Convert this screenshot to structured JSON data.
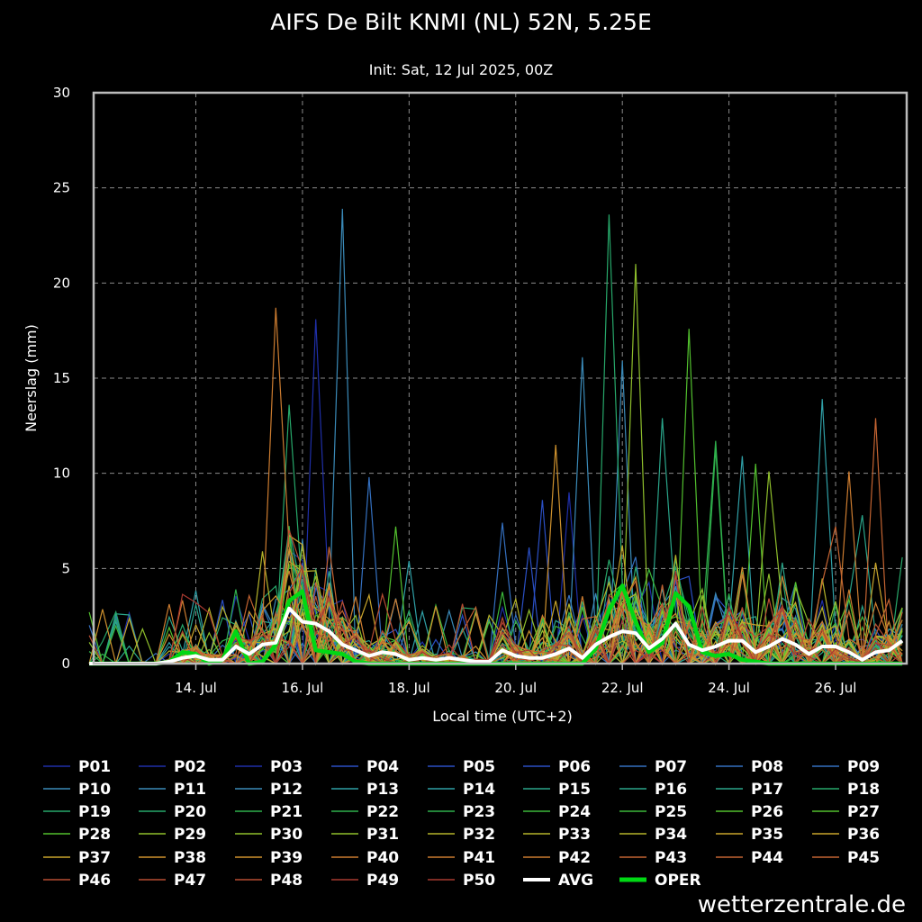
{
  "chart_data": {
    "type": "line",
    "title": "AIFS De Bilt KNMI (NL) 52N, 5.25E",
    "subtitle": "Init: Sat, 12 Jul 2025, 00Z",
    "xlabel": "Local time (UTC+2)",
    "ylabel": "Neerslag (mm)",
    "ylim": [
      0,
      30
    ],
    "xlim": [
      "2025-07-12 02:00",
      "2025-07-27 08:00"
    ],
    "yticks": [
      "0",
      "5",
      "10",
      "15",
      "20",
      "25",
      "30"
    ],
    "xticks": [
      {
        "date": "2025-07-14 00:00",
        "label": "14. Jul"
      },
      {
        "date": "2025-07-16 00:00",
        "label": "16. Jul"
      },
      {
        "date": "2025-07-18 00:00",
        "label": "18. Jul"
      },
      {
        "date": "2025-07-20 00:00",
        "label": "20. Jul"
      },
      {
        "date": "2025-07-22 00:00",
        "label": "22. Jul"
      },
      {
        "date": "2025-07-24 00:00",
        "label": "24. Jul"
      },
      {
        "date": "2025-07-26 00:00",
        "label": "26. Jul"
      }
    ],
    "grid": true,
    "legend_position": "bottom",
    "member_colors": [
      "#1f2fa8",
      "#2a4fc4",
      "#3470c0",
      "#3a8ab8",
      "#2f9fa6",
      "#2aa58a",
      "#27a86a",
      "#2fb04c",
      "#3cb83a",
      "#52c02e",
      "#8fbf2c",
      "#b5b42a",
      "#c9a52c",
      "#cf922e",
      "#cc7c30",
      "#c46432",
      "#b84e32",
      "#a83a30"
    ],
    "oper_color": "#00d814",
    "avg_color": "#ffffff",
    "peaks": [
      {
        "series": "P41",
        "x": "2025-07-15 12:00",
        "y": 18.7
      },
      {
        "series": "P02",
        "x": "2025-07-16 06:00",
        "y": 18.1
      },
      {
        "series": "P20",
        "x": "2025-07-15 18:00",
        "y": 13.6
      },
      {
        "series": "P10",
        "x": "2025-07-16 18:00",
        "y": 23.9
      },
      {
        "series": "P19",
        "x": "2025-07-21 18:00",
        "y": 23.6
      },
      {
        "series": "P29",
        "x": "2025-07-22 06:00",
        "y": 21.0
      },
      {
        "series": "P28",
        "x": "2025-07-23 06:00",
        "y": 17.6
      },
      {
        "series": "P11",
        "x": "2025-07-21 06:00",
        "y": 16.1
      },
      {
        "series": "P12",
        "x": "2025-07-22 00:00",
        "y": 15.9
      },
      {
        "series": "P14",
        "x": "2025-07-25 18:00",
        "y": 13.9
      },
      {
        "series": "P43",
        "x": "2025-07-26 18:00",
        "y": 12.9
      },
      {
        "series": "P16",
        "x": "2025-07-22 18:00",
        "y": 12.9
      },
      {
        "series": "P22",
        "x": "2025-07-23 18:00",
        "y": 11.7
      },
      {
        "series": "P38",
        "x": "2025-07-20 18:00",
        "y": 11.5
      },
      {
        "series": "P21",
        "x": "2025-07-23 18:00",
        "y": 11.3
      },
      {
        "series": "P13",
        "x": "2025-07-24 06:00",
        "y": 10.9
      },
      {
        "series": "P26",
        "x": "2025-07-24 12:00",
        "y": 10.5
      },
      {
        "series": "P31",
        "x": "2025-07-24 18:00",
        "y": 10.1
      },
      {
        "series": "P42",
        "x": "2025-07-26 06:00",
        "y": 10.1
      },
      {
        "series": "P09",
        "x": "2025-07-17 06:00",
        "y": 9.8
      },
      {
        "series": "P03",
        "x": "2025-07-21 00:00",
        "y": 9.0
      },
      {
        "series": "P05",
        "x": "2025-07-20 12:00",
        "y": 8.6
      },
      {
        "series": "P17",
        "x": "2025-07-26 12:00",
        "y": 7.8
      },
      {
        "series": "P08",
        "x": "2025-07-19 18:00",
        "y": 7.4
      },
      {
        "series": "P27",
        "x": "2025-07-17 18:00",
        "y": 7.2
      },
      {
        "series": "P45",
        "x": "2025-07-26 00:00",
        "y": 7.2
      },
      {
        "series": "P04",
        "x": "2025-07-20 06:00",
        "y": 6.1
      },
      {
        "series": "P33",
        "x": "2025-07-15 06:00",
        "y": 5.9
      },
      {
        "series": "P13",
        "x": "2025-07-18 00:00",
        "y": 5.4
      },
      {
        "series": "P35",
        "x": "2025-07-26 18:00",
        "y": 5.3
      }
    ],
    "series": [
      {
        "name": "OPER",
        "x": [
          "2025-07-12 00:00",
          "2025-07-12 06:00",
          "2025-07-12 12:00",
          "2025-07-12 18:00",
          "2025-07-13 00:00",
          "2025-07-13 06:00",
          "2025-07-13 12:00",
          "2025-07-13 18:00",
          "2025-07-14 00:00",
          "2025-07-14 06:00",
          "2025-07-14 12:00",
          "2025-07-14 18:00",
          "2025-07-15 00:00",
          "2025-07-15 06:00",
          "2025-07-15 12:00",
          "2025-07-15 18:00",
          "2025-07-16 00:00",
          "2025-07-16 06:00",
          "2025-07-16 12:00",
          "2025-07-16 18:00",
          "2025-07-17 00:00",
          "2025-07-17 06:00",
          "2025-07-17 12:00",
          "2025-07-17 18:00",
          "2025-07-18 00:00",
          "2025-07-18 06:00",
          "2025-07-18 12:00",
          "2025-07-18 18:00",
          "2025-07-19 00:00",
          "2025-07-19 06:00",
          "2025-07-19 12:00",
          "2025-07-19 18:00",
          "2025-07-20 00:00",
          "2025-07-20 06:00",
          "2025-07-20 12:00",
          "2025-07-20 18:00",
          "2025-07-21 00:00",
          "2025-07-21 06:00",
          "2025-07-21 12:00",
          "2025-07-21 18:00",
          "2025-07-22 00:00",
          "2025-07-22 06:00",
          "2025-07-22 12:00",
          "2025-07-22 18:00",
          "2025-07-23 00:00",
          "2025-07-23 06:00",
          "2025-07-23 12:00",
          "2025-07-23 18:00",
          "2025-07-24 00:00",
          "2025-07-24 06:00",
          "2025-07-24 12:00",
          "2025-07-24 18:00",
          "2025-07-25 00:00",
          "2025-07-25 06:00",
          "2025-07-25 12:00",
          "2025-07-25 18:00",
          "2025-07-26 00:00",
          "2025-07-26 06:00",
          "2025-07-26 12:00",
          "2025-07-26 18:00",
          "2025-07-27 00:00",
          "2025-07-27 06:00"
        ],
        "values": [
          0,
          0,
          0,
          0,
          0,
          0,
          0.1,
          0.6,
          0.5,
          0,
          0.2,
          1.7,
          0,
          0.1,
          1.0,
          3.3,
          3.8,
          0.7,
          0.6,
          0.5,
          0.1,
          0,
          0,
          0,
          0,
          0,
          0,
          0,
          0,
          0,
          0,
          0,
          0,
          0,
          0,
          0,
          0,
          0,
          0.8,
          2.8,
          4.1,
          2.2,
          0.6,
          1.1,
          3.7,
          3.0,
          0.6,
          0.4,
          0.5,
          0.2,
          0.1,
          0,
          0,
          0,
          0,
          0,
          0,
          0,
          0,
          0,
          0,
          0
        ]
      },
      {
        "name": "AVG",
        "x": [
          "2025-07-12 00:00",
          "2025-07-12 06:00",
          "2025-07-12 12:00",
          "2025-07-12 18:00",
          "2025-07-13 00:00",
          "2025-07-13 06:00",
          "2025-07-13 12:00",
          "2025-07-13 18:00",
          "2025-07-14 00:00",
          "2025-07-14 06:00",
          "2025-07-14 12:00",
          "2025-07-14 18:00",
          "2025-07-15 00:00",
          "2025-07-15 06:00",
          "2025-07-15 12:00",
          "2025-07-15 18:00",
          "2025-07-16 00:00",
          "2025-07-16 06:00",
          "2025-07-16 12:00",
          "2025-07-16 18:00",
          "2025-07-17 00:00",
          "2025-07-17 06:00",
          "2025-07-17 12:00",
          "2025-07-17 18:00",
          "2025-07-18 00:00",
          "2025-07-18 06:00",
          "2025-07-18 12:00",
          "2025-07-18 18:00",
          "2025-07-19 00:00",
          "2025-07-19 06:00",
          "2025-07-19 12:00",
          "2025-07-19 18:00",
          "2025-07-20 00:00",
          "2025-07-20 06:00",
          "2025-07-20 12:00",
          "2025-07-20 18:00",
          "2025-07-21 00:00",
          "2025-07-21 06:00",
          "2025-07-21 12:00",
          "2025-07-21 18:00",
          "2025-07-22 00:00",
          "2025-07-22 06:00",
          "2025-07-22 12:00",
          "2025-07-22 18:00",
          "2025-07-23 00:00",
          "2025-07-23 06:00",
          "2025-07-23 12:00",
          "2025-07-23 18:00",
          "2025-07-24 00:00",
          "2025-07-24 06:00",
          "2025-07-24 12:00",
          "2025-07-24 18:00",
          "2025-07-25 00:00",
          "2025-07-25 06:00",
          "2025-07-25 12:00",
          "2025-07-25 18:00",
          "2025-07-26 00:00",
          "2025-07-26 06:00",
          "2025-07-26 12:00",
          "2025-07-26 18:00",
          "2025-07-27 00:00",
          "2025-07-27 06:00"
        ],
        "values": [
          0,
          0,
          0,
          0,
          0,
          0,
          0.1,
          0.3,
          0.4,
          0.2,
          0.2,
          0.9,
          0.5,
          1.0,
          1.1,
          2.9,
          2.2,
          2.1,
          1.7,
          1.0,
          0.7,
          0.4,
          0.6,
          0.5,
          0.2,
          0.3,
          0.2,
          0.3,
          0.2,
          0.1,
          0.1,
          0.7,
          0.4,
          0.3,
          0.3,
          0.5,
          0.8,
          0.3,
          1.0,
          1.4,
          1.7,
          1.6,
          0.8,
          1.3,
          2.1,
          1.0,
          0.7,
          0.9,
          1.2,
          1.2,
          0.6,
          0.9,
          1.3,
          1.0,
          0.5,
          0.9,
          0.9,
          0.6,
          0.2,
          0.6,
          0.7,
          1.2
        ]
      }
    ]
  },
  "legend": {
    "members": [
      "P01",
      "P02",
      "P03",
      "P04",
      "P05",
      "P06",
      "P07",
      "P08",
      "P09",
      "P10",
      "P11",
      "P12",
      "P13",
      "P14",
      "P15",
      "P16",
      "P17",
      "P18",
      "P19",
      "P20",
      "P21",
      "P22",
      "P23",
      "P24",
      "P25",
      "P26",
      "P27",
      "P28",
      "P29",
      "P30",
      "P31",
      "P32",
      "P33",
      "P34",
      "P35",
      "P36",
      "P37",
      "P38",
      "P39",
      "P40",
      "P41",
      "P42",
      "P43",
      "P44",
      "P45",
      "P46",
      "P47",
      "P48",
      "P49",
      "P50"
    ],
    "avg_label": "AVG",
    "oper_label": "OPER"
  },
  "credit": "wetterzentrale.de"
}
